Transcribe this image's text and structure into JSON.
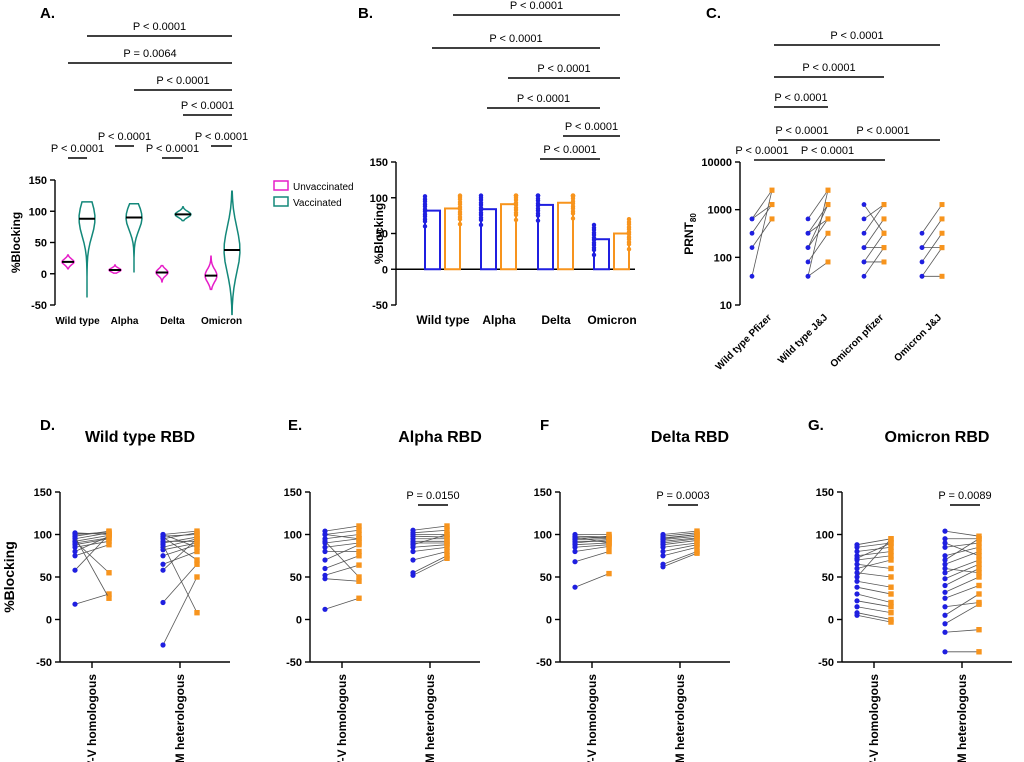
{
  "colors": {
    "blue": "#1f1fe0",
    "orange": "#f7941d",
    "pink": "#e61ec8",
    "teal": "#13887a",
    "line": "#555555",
    "axis": "#000000"
  },
  "chart_data": [
    {
      "panel": "A.",
      "type": "violin",
      "ylabel": "%Blocking",
      "yticks": [
        -50,
        0,
        50,
        100,
        150
      ],
      "ylim": [
        -50,
        150
      ],
      "categories": [
        "Wild type",
        "Alpha",
        "Delta",
        "Omicron"
      ],
      "legend": [
        "Unvaccinated",
        "Vaccinated"
      ],
      "series": [
        {
          "name": "Unvaccinated",
          "medians": [
            19,
            6,
            2,
            -3
          ],
          "ranges": [
            [
              8,
              30
            ],
            [
              1,
              14
            ],
            [
              -13,
              13
            ],
            [
              -25,
              28
            ]
          ]
        },
        {
          "name": "Vaccinated",
          "medians": [
            88,
            90,
            95,
            38
          ],
          "ranges": [
            [
              -38,
              115
            ],
            [
              2,
              112
            ],
            [
              85,
              107
            ],
            [
              -65,
              132
            ]
          ]
        }
      ],
      "comparisons": [
        {
          "label": "P < 0.0001",
          "from": [
            1,
            "Unvaccinated"
          ],
          "to": [
            1,
            "Vaccinated"
          ]
        },
        {
          "label": "P < 0.0001",
          "from": [
            2,
            "Unvaccinated"
          ],
          "to": [
            2,
            "Vaccinated"
          ]
        },
        {
          "label": "P < 0.0001",
          "from": [
            3,
            "Unvaccinated"
          ],
          "to": [
            3,
            "Vaccinated"
          ]
        },
        {
          "label": "P < 0.0001",
          "from": [
            4,
            "Unvaccinated"
          ],
          "to": [
            4,
            "Vaccinated"
          ]
        },
        {
          "label": "P < 0.0001",
          "from": [
            3,
            "Vaccinated"
          ],
          "to": [
            4,
            "Vaccinated"
          ]
        },
        {
          "label": "P < 0.0001",
          "from": [
            2,
            "Unvaccinated"
          ],
          "to": [
            4,
            "Vaccinated"
          ]
        },
        {
          "label": "P = 0.0064",
          "from": [
            1,
            "Unvaccinated"
          ],
          "to": [
            4,
            "Vaccinated"
          ]
        },
        {
          "label": "P < 0.0001",
          "from": [
            1,
            "Vaccinated"
          ],
          "to": [
            4,
            "Vaccinated"
          ]
        }
      ]
    },
    {
      "panel": "B.",
      "type": "paired-bar",
      "ylabel": "%Blocking",
      "yticks": [
        -50,
        0,
        50,
        100,
        150
      ],
      "ylim": [
        -50,
        150
      ],
      "categories": [
        "Wild type",
        "Alpha",
        "Delta",
        "Omicron"
      ],
      "series": [
        {
          "name": "blue",
          "values": [
            82,
            84,
            90,
            42
          ]
        },
        {
          "name": "orange",
          "values": [
            85,
            91,
            93,
            50
          ]
        }
      ],
      "comparisons": [
        {
          "label": "P < 0.0001",
          "from": 3,
          "to": 4
        },
        {
          "label": "P < 0.0001",
          "from": 4,
          "to": 4
        },
        {
          "label": "P < 0.0001",
          "from": 2,
          "to": 4
        },
        {
          "label": "P < 0.0001",
          "from": 3,
          "to": 4
        },
        {
          "label": "P < 0.0001",
          "from": 1,
          "to": 4
        },
        {
          "label": "P < 0.0001",
          "from": 0,
          "to": 4
        }
      ]
    },
    {
      "panel": "C.",
      "type": "paired-scatter-log",
      "ylabel": "PRNT",
      "ylabel_sub": "80",
      "yticks": [
        10,
        100,
        1000,
        10000
      ],
      "ylim": [
        10,
        10000
      ],
      "categories": [
        "Wild type Pfizer",
        "Wild type J&J",
        "Omicron pfizer",
        "Omicron J&J"
      ],
      "pairs": [
        [
          [
            40,
            2560
          ],
          [
            160,
            640
          ],
          [
            320,
            1280
          ],
          [
            640,
            2560
          ],
          [
            640,
            1280
          ]
        ],
        [
          [
            40,
            2560
          ],
          [
            80,
            320
          ],
          [
            160,
            640
          ],
          [
            320,
            1280
          ],
          [
            640,
            2560
          ],
          [
            40,
            80
          ],
          [
            160,
            1280
          ],
          [
            320,
            640
          ]
        ],
        [
          [
            40,
            160
          ],
          [
            80,
            320
          ],
          [
            160,
            640
          ],
          [
            320,
            1280
          ],
          [
            640,
            1280
          ],
          [
            1280,
            320
          ],
          [
            80,
            80
          ],
          [
            160,
            160
          ]
        ],
        [
          [
            40,
            160
          ],
          [
            80,
            320
          ],
          [
            160,
            640
          ],
          [
            320,
            1280
          ],
          [
            40,
            40
          ],
          [
            160,
            160
          ]
        ]
      ],
      "comparisons": [
        {
          "label": "P < 0.0001",
          "from": 0,
          "to": 1
        },
        {
          "label": "P < 0.0001",
          "from": 0,
          "to": 2
        },
        {
          "label": "P < 0.0001",
          "from": 1,
          "to": 2
        },
        {
          "label": "P < 0.0001",
          "from": 1,
          "to": 3
        },
        {
          "label": "P < 0.0001",
          "from": 0,
          "to": 2
        },
        {
          "label": "P < 0.0001",
          "from": 1,
          "to": 3
        },
        {
          "label": "P < 0.0001",
          "from": 0,
          "to": 3
        }
      ]
    },
    {
      "panel": "D.",
      "type": "paired-scatter",
      "title": "Wild type RBD",
      "ylabel": "%Blocking",
      "yticks": [
        -50,
        0,
        50,
        100,
        150
      ],
      "ylim": [
        -50,
        150
      ],
      "categories": [
        "V-V homologous",
        "V-M  heterologous"
      ],
      "groups": [
        [
          [
            100,
            103
          ],
          [
            98,
            104
          ],
          [
            102,
            100
          ],
          [
            95,
            102
          ],
          [
            92,
            99
          ],
          [
            88,
            95
          ],
          [
            85,
            92
          ],
          [
            80,
            98
          ],
          [
            75,
            88
          ],
          [
            58,
            100
          ],
          [
            18,
            30
          ],
          [
            92,
            55
          ],
          [
            97,
            25
          ],
          [
            101,
            101
          ],
          [
            90,
            96
          ]
        ],
        [
          [
            100,
            104
          ],
          [
            98,
            100
          ],
          [
            95,
            102
          ],
          [
            90,
            97
          ],
          [
            85,
            95
          ],
          [
            82,
            90
          ],
          [
            75,
            88
          ],
          [
            65,
            80
          ],
          [
            58,
            95
          ],
          [
            20,
            65
          ],
          [
            -30,
            50
          ],
          [
            88,
            8
          ],
          [
            92,
            92
          ],
          [
            97,
            70
          ],
          [
            100,
            85
          ]
        ]
      ],
      "p_label": ""
    },
    {
      "panel": "E.",
      "type": "paired-scatter",
      "title": "Alpha RBD",
      "ylabel": "",
      "yticks": [
        -50,
        0,
        50,
        100,
        150
      ],
      "ylim": [
        -50,
        150
      ],
      "categories": [
        "V-V homologous",
        "V-M  heterologous"
      ],
      "groups": [
        [
          [
            104,
            110
          ],
          [
            100,
            105
          ],
          [
            95,
            100
          ],
          [
            90,
            95
          ],
          [
            85,
            90
          ],
          [
            80,
            80
          ],
          [
            70,
            88
          ],
          [
            60,
            75
          ],
          [
            52,
            64
          ],
          [
            48,
            45
          ],
          [
            12,
            25
          ],
          [
            92,
            50
          ],
          [
            100,
            95
          ]
        ],
        [
          [
            105,
            110
          ],
          [
            102,
            105
          ],
          [
            100,
            100
          ],
          [
            98,
            97
          ],
          [
            95,
            95
          ],
          [
            92,
            92
          ],
          [
            90,
            90
          ],
          [
            85,
            88
          ],
          [
            80,
            85
          ],
          [
            70,
            80
          ],
          [
            55,
            75
          ],
          [
            52,
            72
          ],
          [
            88,
            100
          ]
        ]
      ],
      "p_label": "P = 0.0150"
    },
    {
      "panel": "F",
      "type": "paired-scatter",
      "title": "Delta RBD",
      "ylabel": "",
      "yticks": [
        -50,
        0,
        50,
        100,
        150
      ],
      "ylim": [
        -50,
        150
      ],
      "categories": [
        "V-V homologous",
        "V-M  heterologous"
      ],
      "groups": [
        [
          [
            100,
            100
          ],
          [
            98,
            97
          ],
          [
            96,
            96
          ],
          [
            94,
            95
          ],
          [
            92,
            92
          ],
          [
            90,
            94
          ],
          [
            88,
            90
          ],
          [
            85,
            88
          ],
          [
            80,
            86
          ],
          [
            68,
            80
          ],
          [
            38,
            54
          ],
          [
            95,
            98
          ],
          [
            97,
            90
          ]
        ],
        [
          [
            100,
            104
          ],
          [
            98,
            102
          ],
          [
            96,
            100
          ],
          [
            94,
            98
          ],
          [
            92,
            96
          ],
          [
            90,
            95
          ],
          [
            88,
            93
          ],
          [
            85,
            90
          ],
          [
            80,
            88
          ],
          [
            75,
            85
          ],
          [
            65,
            80
          ],
          [
            62,
            78
          ],
          [
            95,
            100
          ]
        ]
      ],
      "p_label": "P = 0.0003"
    },
    {
      "panel": "G.",
      "type": "paired-scatter",
      "title": "Omicron RBD",
      "ylabel": "",
      "yticks": [
        -50,
        0,
        50,
        100,
        150
      ],
      "ylim": [
        -50,
        150
      ],
      "categories": [
        "V-V homologous",
        "V-M  heterologous"
      ],
      "groups": [
        [
          [
            88,
            95
          ],
          [
            85,
            90
          ],
          [
            80,
            85
          ],
          [
            75,
            80
          ],
          [
            70,
            75
          ],
          [
            65,
            60
          ],
          [
            55,
            50
          ],
          [
            45,
            38
          ],
          [
            38,
            30
          ],
          [
            30,
            20
          ],
          [
            22,
            15
          ],
          [
            15,
            8
          ],
          [
            8,
            0
          ],
          [
            5,
            -3
          ],
          [
            50,
            95
          ],
          [
            60,
            70
          ],
          [
            72,
            90
          ]
        ],
        [
          [
            104,
            98
          ],
          [
            95,
            95
          ],
          [
            85,
            90
          ],
          [
            75,
            85
          ],
          [
            65,
            80
          ],
          [
            55,
            70
          ],
          [
            48,
            65
          ],
          [
            40,
            60
          ],
          [
            32,
            50
          ],
          [
            25,
            40
          ],
          [
            15,
            20
          ],
          [
            5,
            30
          ],
          [
            -5,
            18
          ],
          [
            -15,
            -12
          ],
          [
            -38,
            -38
          ],
          [
            60,
            55
          ],
          [
            70,
            95
          ],
          [
            90,
            75
          ]
        ]
      ],
      "p_label": "P = 0.0089"
    }
  ]
}
